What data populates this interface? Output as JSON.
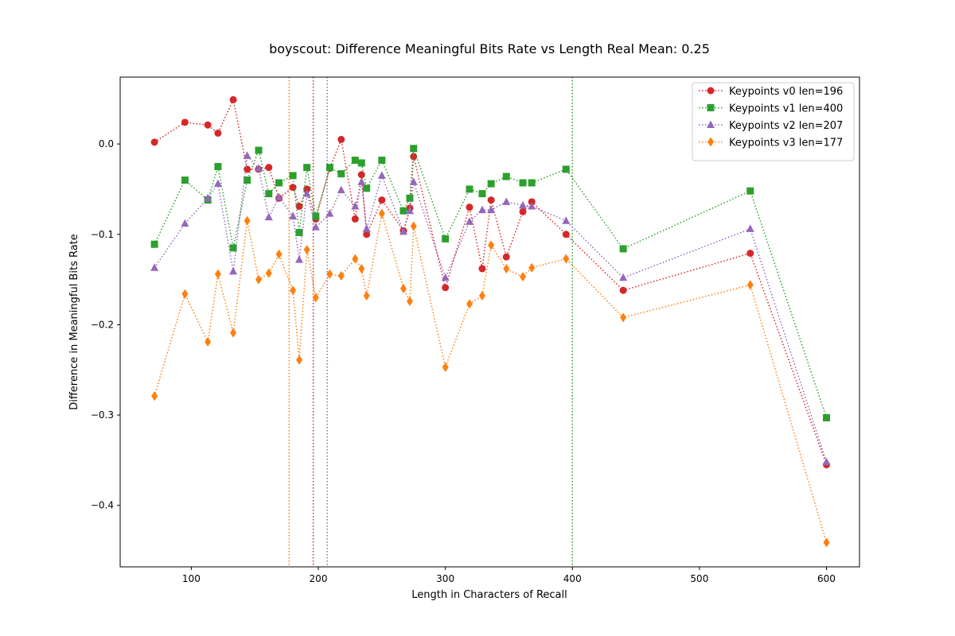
{
  "chart_data": {
    "type": "line",
    "title": "boyscout: Difference Meaningful Bits Rate vs Length Real Mean: 0.25",
    "xlabel": "Length in Characters of Recall",
    "ylabel": "Difference in Meaningful Bits Rate",
    "xlim": [
      44,
      626
    ],
    "ylim": [
      -0.468,
      0.074
    ],
    "xticks": [
      100,
      200,
      300,
      400,
      500,
      600
    ],
    "xtick_labels": [
      "100",
      "200",
      "300",
      "400",
      "500",
      "600"
    ],
    "yticks": [
      0.0,
      -0.1,
      -0.2,
      -0.3,
      -0.4
    ],
    "ytick_labels": [
      "0.0",
      "−0.1",
      "−0.2",
      "−0.3",
      "−0.4"
    ],
    "grid": false,
    "legend_position": "top-right",
    "x": [
      71,
      95,
      113,
      121,
      133,
      144,
      153,
      161,
      169,
      180,
      185,
      191,
      198,
      209,
      218,
      229,
      234,
      238,
      250,
      267,
      272,
      275,
      300,
      319,
      329,
      336,
      348,
      361,
      368,
      395,
      440,
      540,
      600
    ],
    "series": [
      {
        "name": "Keypoints v0 len=196",
        "color": "#d62728",
        "marker": "circle",
        "vline": 196,
        "values": [
          0.002,
          0.024,
          0.021,
          0.012,
          0.049,
          -0.028,
          -0.028,
          -0.026,
          -0.06,
          -0.048,
          -0.069,
          -0.05,
          -0.083,
          -0.027,
          0.005,
          -0.083,
          -0.034,
          -0.1,
          -0.062,
          -0.096,
          -0.071,
          -0.014,
          -0.159,
          -0.07,
          -0.138,
          -0.062,
          -0.125,
          -0.075,
          -0.064,
          -0.1,
          -0.162,
          -0.121,
          -0.355
        ]
      },
      {
        "name": "Keypoints v1 len=400",
        "color": "#2ca02c",
        "marker": "square",
        "vline": 400,
        "values": [
          -0.111,
          -0.04,
          -0.062,
          -0.025,
          -0.115,
          -0.04,
          -0.007,
          -0.055,
          -0.043,
          -0.035,
          -0.098,
          -0.026,
          -0.08,
          -0.026,
          -0.033,
          -0.018,
          -0.021,
          -0.049,
          -0.018,
          -0.074,
          -0.06,
          -0.005,
          -0.105,
          -0.05,
          -0.055,
          -0.044,
          -0.036,
          -0.043,
          -0.043,
          -0.028,
          -0.116,
          -0.052,
          -0.303
        ]
      },
      {
        "name": "Keypoints v2 len=207",
        "color": "#9467bd",
        "marker": "triangle",
        "vline": 207,
        "values": [
          -0.137,
          -0.088,
          -0.06,
          -0.044,
          -0.141,
          -0.013,
          -0.027,
          -0.081,
          -0.059,
          -0.08,
          -0.128,
          -0.055,
          -0.092,
          -0.077,
          -0.051,
          -0.069,
          -0.042,
          -0.094,
          -0.035,
          -0.097,
          -0.074,
          -0.042,
          -0.148,
          -0.086,
          -0.073,
          -0.073,
          -0.064,
          -0.068,
          -0.069,
          -0.085,
          -0.148,
          -0.094,
          -0.352
        ]
      },
      {
        "name": "Keypoints v3 len=177",
        "color": "#ff7f0e",
        "marker": "diamond",
        "vline": 177,
        "values": [
          -0.279,
          -0.166,
          -0.219,
          -0.144,
          -0.209,
          -0.085,
          -0.15,
          -0.143,
          -0.122,
          -0.162,
          -0.239,
          -0.117,
          -0.17,
          -0.144,
          -0.146,
          -0.127,
          -0.138,
          -0.168,
          -0.077,
          -0.16,
          -0.174,
          -0.091,
          -0.247,
          -0.177,
          -0.168,
          -0.112,
          -0.138,
          -0.147,
          -0.137,
          -0.127,
          -0.192,
          -0.156,
          -0.441
        ]
      }
    ]
  }
}
